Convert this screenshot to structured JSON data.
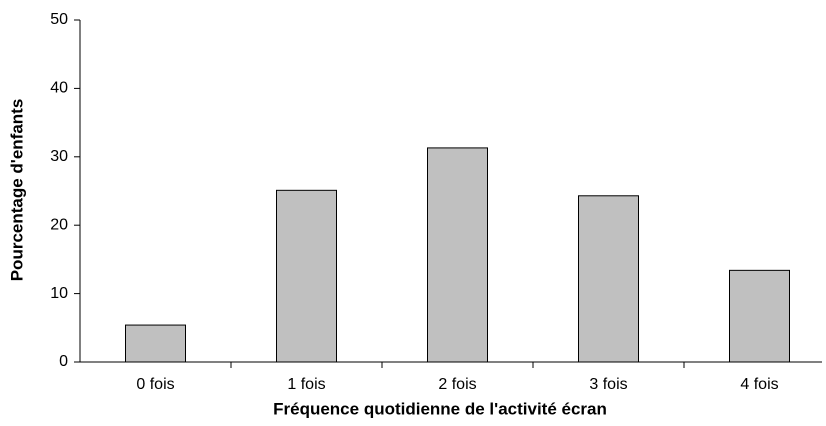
{
  "chart_data": {
    "type": "bar",
    "x_label": "Fréquence quotidienne de l'activité écran",
    "y_label": "Pourcentage d'enfants",
    "categories": [
      "0 fois",
      "1 fois",
      "2 fois",
      "3 fois",
      "4 fois"
    ],
    "values": [
      5.4,
      25.1,
      31.3,
      24.3,
      13.4
    ],
    "color": "#c0c0c0",
    "ylim": [
      0,
      50
    ],
    "yticks": [
      0,
      10,
      20,
      30,
      40,
      50
    ],
    "grid": false
  }
}
